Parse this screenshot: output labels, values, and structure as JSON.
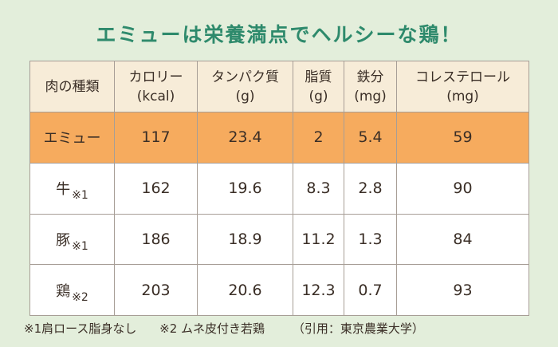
{
  "title": "エミューは栄養満点でヘルシーな鶏！",
  "headers": [
    {
      "label": "肉の種類",
      "unit": ""
    },
    {
      "label": "カロリー",
      "unit": "(kcal)"
    },
    {
      "label": "タンパク質",
      "unit": "(g)"
    },
    {
      "label": "脂質",
      "unit": "(g)"
    },
    {
      "label": "鉄分",
      "unit": "(mg)"
    },
    {
      "label": "コレステロール",
      "unit": "(mg)"
    }
  ],
  "rows": [
    {
      "name": "エミュー",
      "note": "",
      "values": [
        "117",
        "23.4",
        "2",
        "5.4",
        "59"
      ]
    },
    {
      "name": "牛",
      "note": "※1",
      "values": [
        "162",
        "19.6",
        "8.3",
        "2.8",
        "90"
      ]
    },
    {
      "name": "豚",
      "note": "※1",
      "values": [
        "186",
        "18.9",
        "11.2",
        "1.3",
        "84"
      ]
    },
    {
      "name": "鶏",
      "note": "※2",
      "values": [
        "203",
        "20.6",
        "12.3",
        "0.7",
        "93"
      ]
    }
  ],
  "footnotes": {
    "note1": "※1肩ロース脂身なし",
    "note2": "※2 ムネ皮付き若鶏",
    "source": "（引用：東京農業大学）"
  },
  "colors": {
    "title": "#2e8a6c",
    "background": "#e3eedb",
    "header_bg": "#f7ecd8",
    "highlight_row": "#f6ab5e",
    "border": "#a79e96"
  }
}
